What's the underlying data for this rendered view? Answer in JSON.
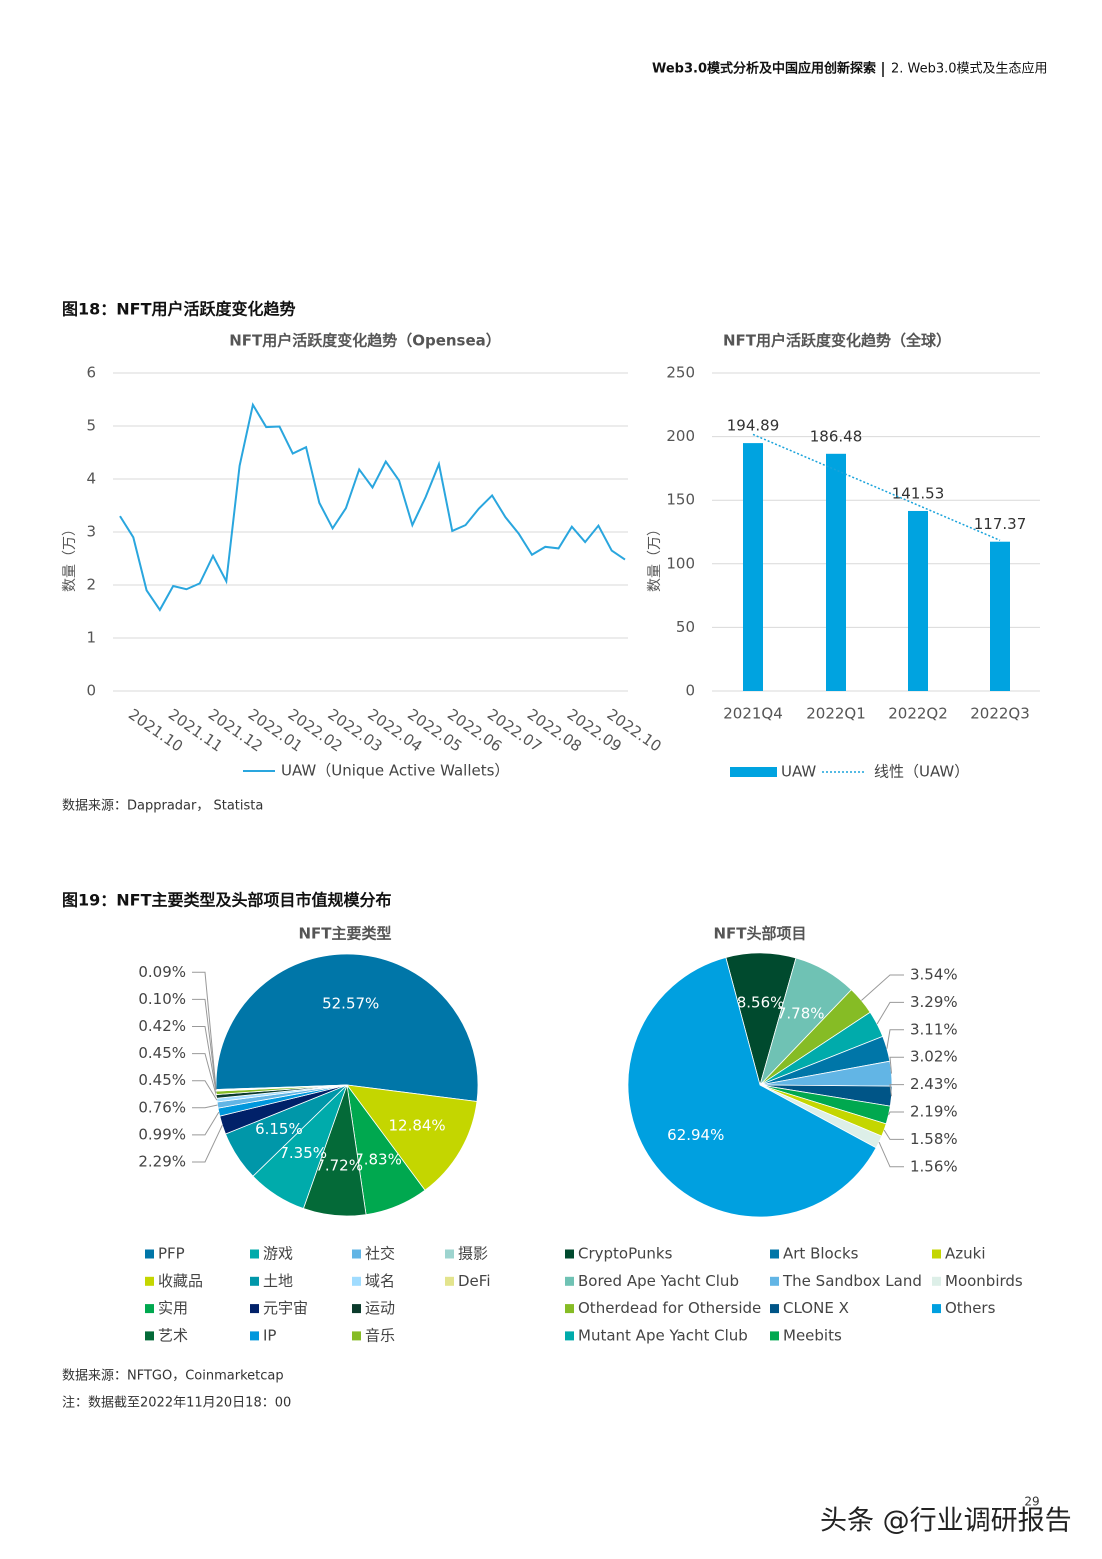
{
  "header": {
    "title": "Web3.0模式分析及中国应用创新探索",
    "section": "2. Web3.0模式及生态应用"
  },
  "figure18": {
    "caption": "图18：NFT用户活跃度变化趋势",
    "source": "数据来源：Dappradar， Statista"
  },
  "figure19": {
    "caption": "图19：NFT主要类型及头部项目市值规模分布",
    "source": "数据来源：NFTGO，Coinmarketcap",
    "note": "注：数据截至2022年11月20日18：00"
  },
  "page_number": "29",
  "watermark": "头条 @行业调研报告",
  "chart_data": [
    {
      "type": "line",
      "title": "NFT用户活跃度变化趋势（Opensea）",
      "ylabel": "数量（万）",
      "categories": [
        "2021.10",
        null,
        null,
        "2021.11",
        null,
        null,
        "2021.12",
        null,
        null,
        "2022.01",
        null,
        null,
        "2022.02",
        null,
        null,
        "2022.03",
        null,
        null,
        "2022.04",
        null,
        null,
        "2022.05",
        null,
        null,
        "2022.06",
        null,
        null,
        "2022.07",
        null,
        null,
        "2022.08",
        null,
        null,
        "2022.09",
        null,
        null,
        "2022.10",
        null,
        null
      ],
      "series": [
        {
          "name": "UAW（Unique Active Wallets）",
          "color": "#2AA6DE",
          "values": [
            3.3,
            2.9,
            1.9,
            1.53,
            1.98,
            1.92,
            2.03,
            2.55,
            2.07,
            4.25,
            5.4,
            4.98,
            4.99,
            4.48,
            4.6,
            3.55,
            3.07,
            3.45,
            4.18,
            3.84,
            4.33,
            3.97,
            3.13,
            3.66,
            4.28,
            3.02,
            3.13,
            3.44,
            3.69,
            3.28,
            2.97,
            2.57,
            2.72,
            2.69,
            3.1,
            2.81,
            3.12,
            2.65,
            2.48
          ]
        }
      ],
      "ylim": [
        0,
        6
      ],
      "yticks": [
        0,
        1,
        2,
        3,
        4,
        5,
        6
      ],
      "grid": true
    },
    {
      "type": "bar",
      "title": "NFT用户活跃度变化趋势（全球）",
      "ylabel": "数量（万）",
      "categories": [
        "2021Q4",
        "2022Q1",
        "2022Q2",
        "2022Q3"
      ],
      "series": [
        {
          "name": "UAW",
          "color": "#00A3E0",
          "values": [
            194.89,
            186.48,
            141.53,
            117.37
          ]
        }
      ],
      "trendline": {
        "name": "线性（UAW）",
        "color": "#1AA3DB"
      },
      "ylim": [
        0,
        250
      ],
      "yticks": [
        0,
        50,
        100,
        150,
        200,
        250
      ],
      "grid": true
    },
    {
      "type": "pie",
      "title": "NFT主要类型",
      "categories": [
        "PFP",
        "收藏品",
        "实用",
        "艺术",
        "游戏",
        "土地",
        "元宇宙",
        "IP",
        "社交",
        "域名",
        "运动",
        "音乐",
        "摄影",
        "DeFi"
      ],
      "values": [
        52.57,
        12.84,
        7.83,
        7.72,
        7.35,
        6.15,
        2.29,
        0.99,
        0.76,
        0.45,
        0.45,
        0.42,
        0.1,
        0.09
      ],
      "value_labels": [
        "52.57%",
        "12.84%",
        "7.83%",
        "7.72%",
        "7.35%",
        "6.15%",
        "2.29%",
        "0.99%",
        "0.76%",
        "0.45%",
        "0.45%",
        "0.42%",
        "0.10%",
        "0.09%"
      ],
      "colors": [
        "#0076A8",
        "#C4D600",
        "#00A84F",
        "#046A38",
        "#00ABAB",
        "#0097A9",
        "#012169",
        "#0097DC",
        "#62B5E5",
        "#A0DCFF",
        "#0B3B2C",
        "#86BC25",
        "#9DD4CF",
        "#E3E48D"
      ]
    },
    {
      "type": "pie",
      "title": "NFT头部项目",
      "categories": [
        "CryptoPunks",
        "Bored Ape Yacht Club",
        "Otherdead for Otherside",
        "Mutant Ape Yacht Club",
        "Art Blocks",
        "The Sandbox Land",
        "CLONE X",
        "Meebits",
        "Azuki",
        "Moonbirds",
        "Others"
      ],
      "values": [
        8.56,
        7.78,
        3.54,
        3.29,
        3.11,
        3.02,
        2.43,
        2.19,
        1.58,
        1.56,
        62.94
      ],
      "value_labels": [
        "8.56%",
        "7.78%",
        "3.54%",
        "3.29%",
        "3.11%",
        "3.02%",
        "2.43%",
        "2.19%",
        "1.58%",
        "1.56%",
        "62.94%"
      ],
      "colors": [
        "#004A2E",
        "#6FC2B4",
        "#86BC25",
        "#00ABAB",
        "#0076A8",
        "#62B5E5",
        "#005587",
        "#00A84F",
        "#C4D600",
        "#DDEFE8",
        "#00A0E0"
      ]
    }
  ]
}
